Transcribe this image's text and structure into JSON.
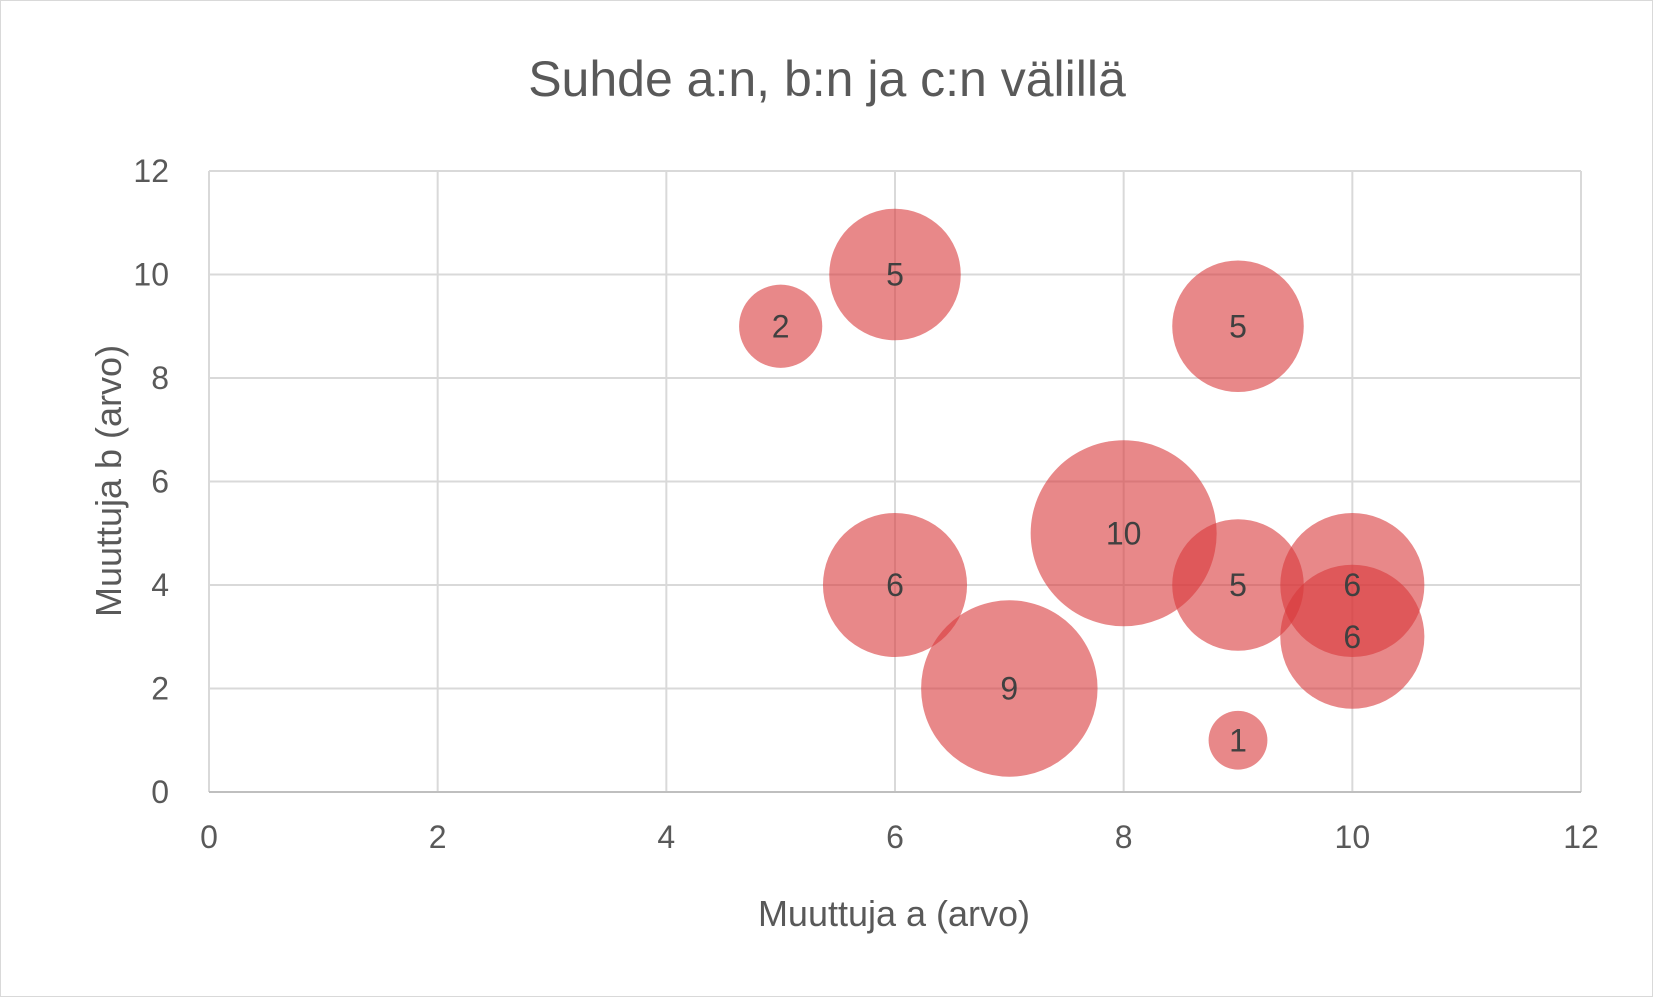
{
  "chart_data": {
    "type": "bubble",
    "title": "Suhde a:n, b:n ja c:n välillä",
    "xlabel": "Muuttuja a (arvo)",
    "ylabel": "Muuttuja b (arvo)",
    "xlim": [
      0,
      12
    ],
    "ylim": [
      0,
      12
    ],
    "xticks": [
      "0",
      "2",
      "4",
      "6",
      "8",
      "10",
      "12"
    ],
    "yticks": [
      "0",
      "2",
      "4",
      "6",
      "8",
      "10",
      "12"
    ],
    "grid": true,
    "legend": "none",
    "bubble_color": "#d9383a",
    "bubble_opacity": 0.6,
    "points": [
      {
        "x": 6,
        "y": 10,
        "size": 5,
        "label": "5"
      },
      {
        "x": 5,
        "y": 9,
        "size": 2,
        "label": "2"
      },
      {
        "x": 9,
        "y": 9,
        "size": 5,
        "label": "5"
      },
      {
        "x": 8,
        "y": 5,
        "size": 10,
        "label": "10"
      },
      {
        "x": 6,
        "y": 4,
        "size": 6,
        "label": "6"
      },
      {
        "x": 9,
        "y": 4,
        "size": 5,
        "label": "5"
      },
      {
        "x": 10,
        "y": 4,
        "size": 6,
        "label": "6"
      },
      {
        "x": 10,
        "y": 3,
        "size": 6,
        "label": "6"
      },
      {
        "x": 7,
        "y": 2,
        "size": 9,
        "label": "9"
      },
      {
        "x": 9,
        "y": 1,
        "size": 1,
        "label": "1"
      }
    ]
  }
}
